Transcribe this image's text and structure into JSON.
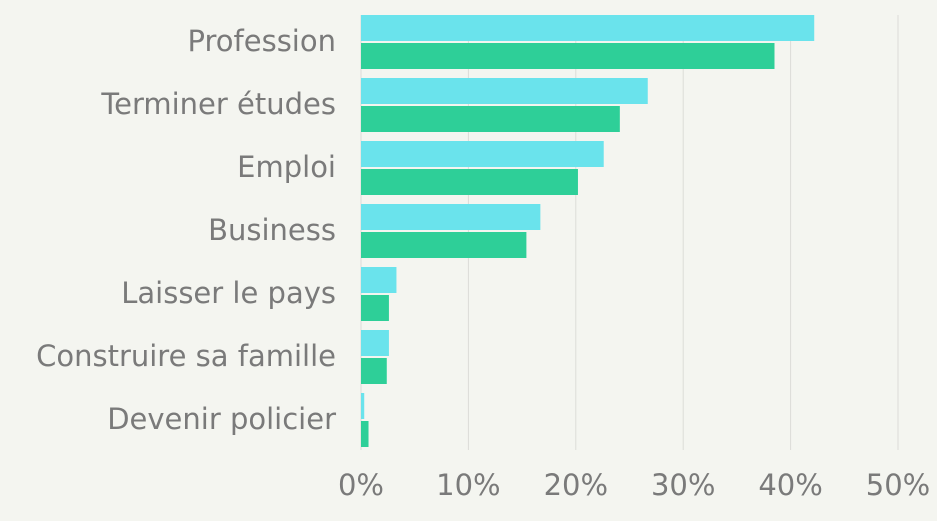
{
  "chart_data": {
    "type": "barh",
    "categories": [
      "Profession",
      "Terminer études",
      "Emploi",
      "Business",
      "Laisser le pays",
      "Construire sa famille",
      "Devenir policier"
    ],
    "series": [
      {
        "color": "#6ae3ec",
        "values": [
          42.2,
          26.7,
          22.6,
          16.7,
          3.3,
          2.6,
          0.3
        ]
      },
      {
        "color": "#2ecf98",
        "values": [
          38.5,
          24.1,
          20.2,
          15.4,
          2.6,
          2.4,
          0.7
        ]
      }
    ],
    "xlim": [
      0,
      50
    ],
    "xticks": [
      {
        "value": 0,
        "label": "0%"
      },
      {
        "value": 10,
        "label": "10%"
      },
      {
        "value": 20,
        "label": "20%"
      },
      {
        "value": 30,
        "label": "30%"
      },
      {
        "value": 40,
        "label": "40%"
      },
      {
        "value": 50,
        "label": "50%"
      }
    ],
    "grid": true
  }
}
